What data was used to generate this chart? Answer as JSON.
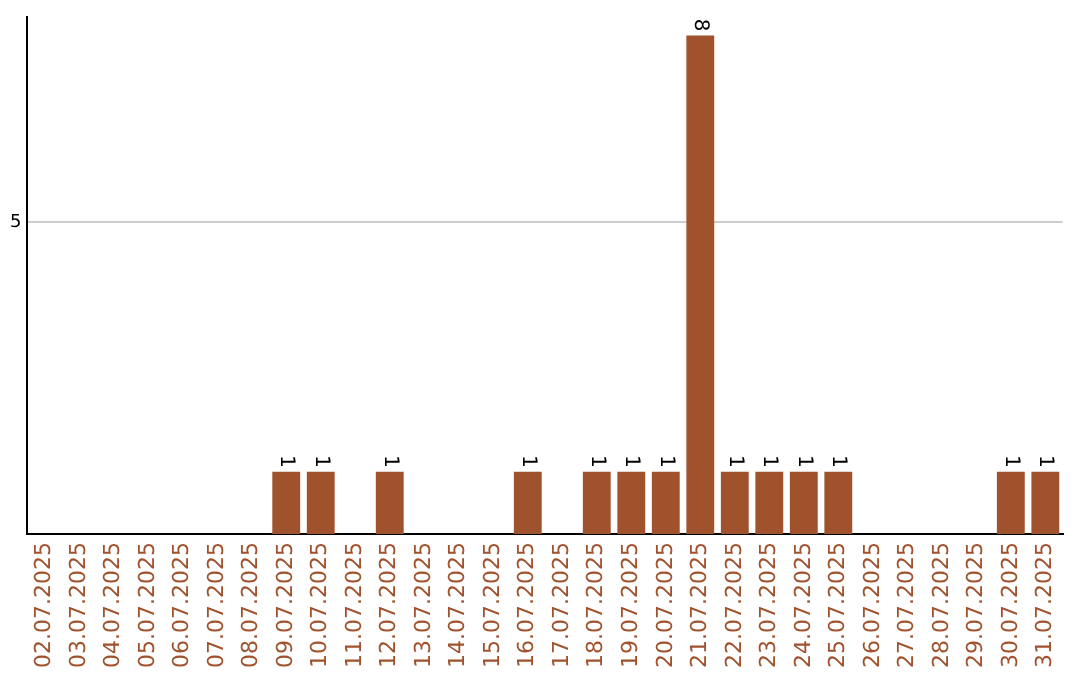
{
  "chart_data": {
    "type": "bar",
    "categories": [
      "02.07.2025",
      "03.07.2025",
      "04.07.2025",
      "05.07.2025",
      "06.07.2025",
      "07.07.2025",
      "08.07.2025",
      "09.07.2025",
      "10.07.2025",
      "11.07.2025",
      "12.07.2025",
      "13.07.2025",
      "14.07.2025",
      "15.07.2025",
      "16.07.2025",
      "17.07.2025",
      "18.07.2025",
      "19.07.2025",
      "20.07.2025",
      "21.07.2025",
      "22.07.2025",
      "23.07.2025",
      "24.07.2025",
      "25.07.2025",
      "26.07.2025",
      "27.07.2025",
      "28.07.2025",
      "29.07.2025",
      "30.07.2025",
      "31.07.2025"
    ],
    "values": [
      0,
      0,
      0,
      0,
      0,
      0,
      0,
      1,
      1,
      0,
      1,
      0,
      0,
      0,
      1,
      0,
      1,
      1,
      1,
      8,
      1,
      1,
      1,
      1,
      0,
      0,
      0,
      0,
      1,
      1
    ],
    "value_labels": [
      null,
      null,
      null,
      null,
      null,
      null,
      null,
      "1",
      "1",
      null,
      "1",
      null,
      null,
      null,
      "1",
      null,
      "1",
      "1",
      "1",
      "8",
      "1",
      "1",
      "1",
      "1",
      null,
      null,
      null,
      null,
      "1",
      "1"
    ],
    "color": "#a0522d",
    "ylim": [
      0,
      8.3
    ],
    "yticks": [
      5
    ],
    "grid": "y",
    "legend": false
  }
}
